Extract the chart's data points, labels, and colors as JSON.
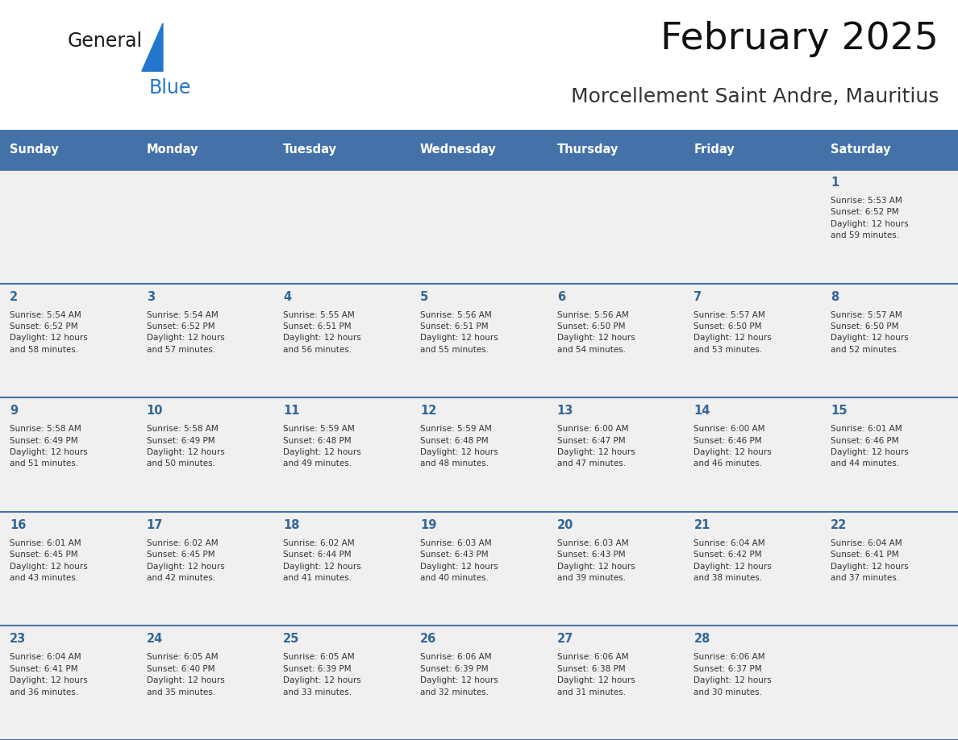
{
  "title": "February 2025",
  "subtitle": "Morcellement Saint Andre, Mauritius",
  "header_bg": "#4472a8",
  "header_text": "#ffffff",
  "cell_bg_light": "#f0f0f0",
  "cell_bg_white": "#ffffff",
  "day_num_color": "#336699",
  "cell_text_color": "#333333",
  "border_color": "#4472a8",
  "days_of_week": [
    "Sunday",
    "Monday",
    "Tuesday",
    "Wednesday",
    "Thursday",
    "Friday",
    "Saturday"
  ],
  "weeks": [
    [
      {
        "day": null,
        "info": null
      },
      {
        "day": null,
        "info": null
      },
      {
        "day": null,
        "info": null
      },
      {
        "day": null,
        "info": null
      },
      {
        "day": null,
        "info": null
      },
      {
        "day": null,
        "info": null
      },
      {
        "day": 1,
        "info": "Sunrise: 5:53 AM\nSunset: 6:52 PM\nDaylight: 12 hours\nand 59 minutes."
      }
    ],
    [
      {
        "day": 2,
        "info": "Sunrise: 5:54 AM\nSunset: 6:52 PM\nDaylight: 12 hours\nand 58 minutes."
      },
      {
        "day": 3,
        "info": "Sunrise: 5:54 AM\nSunset: 6:52 PM\nDaylight: 12 hours\nand 57 minutes."
      },
      {
        "day": 4,
        "info": "Sunrise: 5:55 AM\nSunset: 6:51 PM\nDaylight: 12 hours\nand 56 minutes."
      },
      {
        "day": 5,
        "info": "Sunrise: 5:56 AM\nSunset: 6:51 PM\nDaylight: 12 hours\nand 55 minutes."
      },
      {
        "day": 6,
        "info": "Sunrise: 5:56 AM\nSunset: 6:50 PM\nDaylight: 12 hours\nand 54 minutes."
      },
      {
        "day": 7,
        "info": "Sunrise: 5:57 AM\nSunset: 6:50 PM\nDaylight: 12 hours\nand 53 minutes."
      },
      {
        "day": 8,
        "info": "Sunrise: 5:57 AM\nSunset: 6:50 PM\nDaylight: 12 hours\nand 52 minutes."
      }
    ],
    [
      {
        "day": 9,
        "info": "Sunrise: 5:58 AM\nSunset: 6:49 PM\nDaylight: 12 hours\nand 51 minutes."
      },
      {
        "day": 10,
        "info": "Sunrise: 5:58 AM\nSunset: 6:49 PM\nDaylight: 12 hours\nand 50 minutes."
      },
      {
        "day": 11,
        "info": "Sunrise: 5:59 AM\nSunset: 6:48 PM\nDaylight: 12 hours\nand 49 minutes."
      },
      {
        "day": 12,
        "info": "Sunrise: 5:59 AM\nSunset: 6:48 PM\nDaylight: 12 hours\nand 48 minutes."
      },
      {
        "day": 13,
        "info": "Sunrise: 6:00 AM\nSunset: 6:47 PM\nDaylight: 12 hours\nand 47 minutes."
      },
      {
        "day": 14,
        "info": "Sunrise: 6:00 AM\nSunset: 6:46 PM\nDaylight: 12 hours\nand 46 minutes."
      },
      {
        "day": 15,
        "info": "Sunrise: 6:01 AM\nSunset: 6:46 PM\nDaylight: 12 hours\nand 44 minutes."
      }
    ],
    [
      {
        "day": 16,
        "info": "Sunrise: 6:01 AM\nSunset: 6:45 PM\nDaylight: 12 hours\nand 43 minutes."
      },
      {
        "day": 17,
        "info": "Sunrise: 6:02 AM\nSunset: 6:45 PM\nDaylight: 12 hours\nand 42 minutes."
      },
      {
        "day": 18,
        "info": "Sunrise: 6:02 AM\nSunset: 6:44 PM\nDaylight: 12 hours\nand 41 minutes."
      },
      {
        "day": 19,
        "info": "Sunrise: 6:03 AM\nSunset: 6:43 PM\nDaylight: 12 hours\nand 40 minutes."
      },
      {
        "day": 20,
        "info": "Sunrise: 6:03 AM\nSunset: 6:43 PM\nDaylight: 12 hours\nand 39 minutes."
      },
      {
        "day": 21,
        "info": "Sunrise: 6:04 AM\nSunset: 6:42 PM\nDaylight: 12 hours\nand 38 minutes."
      },
      {
        "day": 22,
        "info": "Sunrise: 6:04 AM\nSunset: 6:41 PM\nDaylight: 12 hours\nand 37 minutes."
      }
    ],
    [
      {
        "day": 23,
        "info": "Sunrise: 6:04 AM\nSunset: 6:41 PM\nDaylight: 12 hours\nand 36 minutes."
      },
      {
        "day": 24,
        "info": "Sunrise: 6:05 AM\nSunset: 6:40 PM\nDaylight: 12 hours\nand 35 minutes."
      },
      {
        "day": 25,
        "info": "Sunrise: 6:05 AM\nSunset: 6:39 PM\nDaylight: 12 hours\nand 33 minutes."
      },
      {
        "day": 26,
        "info": "Sunrise: 6:06 AM\nSunset: 6:39 PM\nDaylight: 12 hours\nand 32 minutes."
      },
      {
        "day": 27,
        "info": "Sunrise: 6:06 AM\nSunset: 6:38 PM\nDaylight: 12 hours\nand 31 minutes."
      },
      {
        "day": 28,
        "info": "Sunrise: 6:06 AM\nSunset: 6:37 PM\nDaylight: 12 hours\nand 30 minutes."
      },
      {
        "day": null,
        "info": null
      }
    ]
  ],
  "logo_text_general": "General",
  "logo_text_blue": "Blue",
  "logo_general_color": "#1a1a1a",
  "logo_blue_color": "#2277cc",
  "logo_triangle_color": "#2277cc"
}
